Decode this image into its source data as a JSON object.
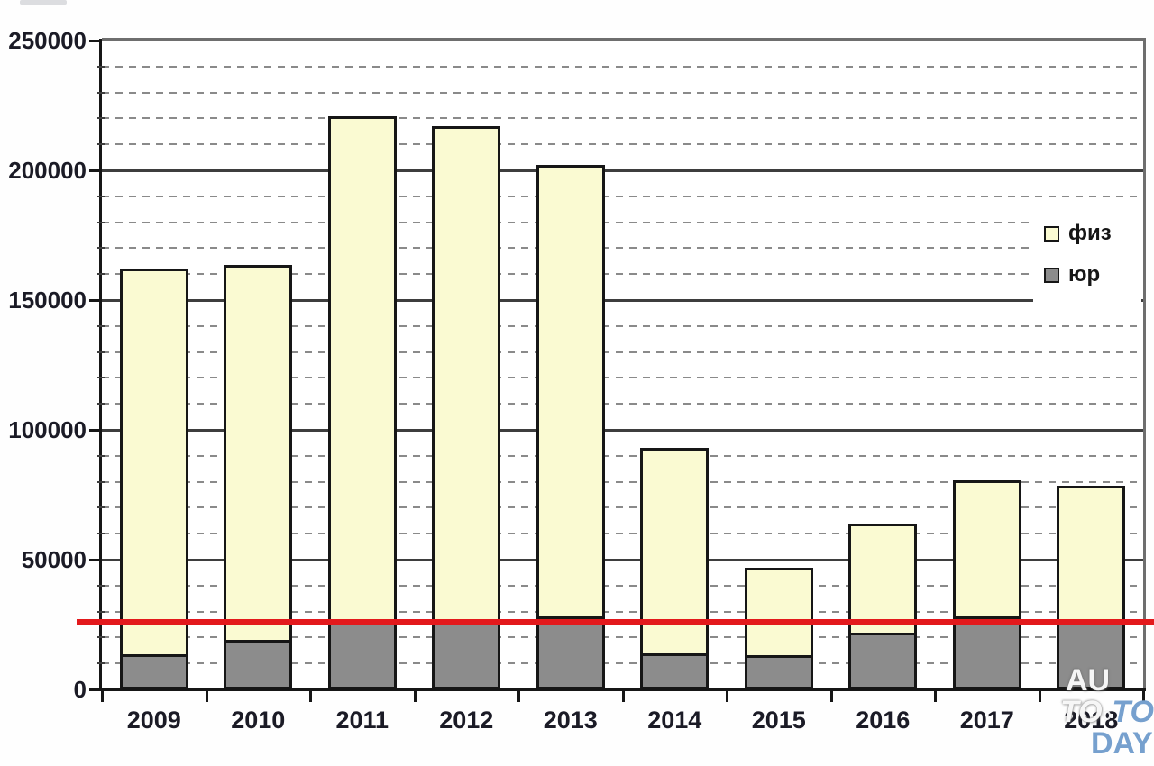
{
  "chart_data": {
    "type": "bar",
    "stacked": true,
    "title": "",
    "xlabel": "",
    "ylabel": "",
    "categories": [
      "2009",
      "2010",
      "2011",
      "2012",
      "2013",
      "2014",
      "2015",
      "2016",
      "2017",
      "2018"
    ],
    "series": [
      {
        "name": "физ",
        "color": "#FAFAD2",
        "values": [
          149500,
          145500,
          195000,
          191000,
          175000,
          80000,
          35000,
          43000,
          53500,
          52500
        ]
      },
      {
        "name": "юр",
        "color": "#8C8C8C",
        "values": [
          12500,
          18000,
          26000,
          26000,
          27000,
          13000,
          12000,
          21000,
          27000,
          26000
        ]
      }
    ],
    "totals": [
      162000,
      163500,
      221000,
      217000,
      202000,
      93000,
      47000,
      64000,
      80500,
      78500
    ],
    "reference_line": {
      "value": 26000,
      "color": "#E3191C"
    },
    "ylim": [
      0,
      250000
    ],
    "y_major_step": 50000,
    "y_minor_step": 10000,
    "y_tick_labels": [
      "0",
      "50000",
      "100000",
      "150000",
      "200000",
      "250000"
    ],
    "grid": "major-solid-minor-dashed",
    "legend_position": "inside-top-right"
  },
  "watermark": {
    "line1": "AU",
    "line2_left": "TO",
    "line2_right": "TO",
    "line3": "DAY"
  }
}
